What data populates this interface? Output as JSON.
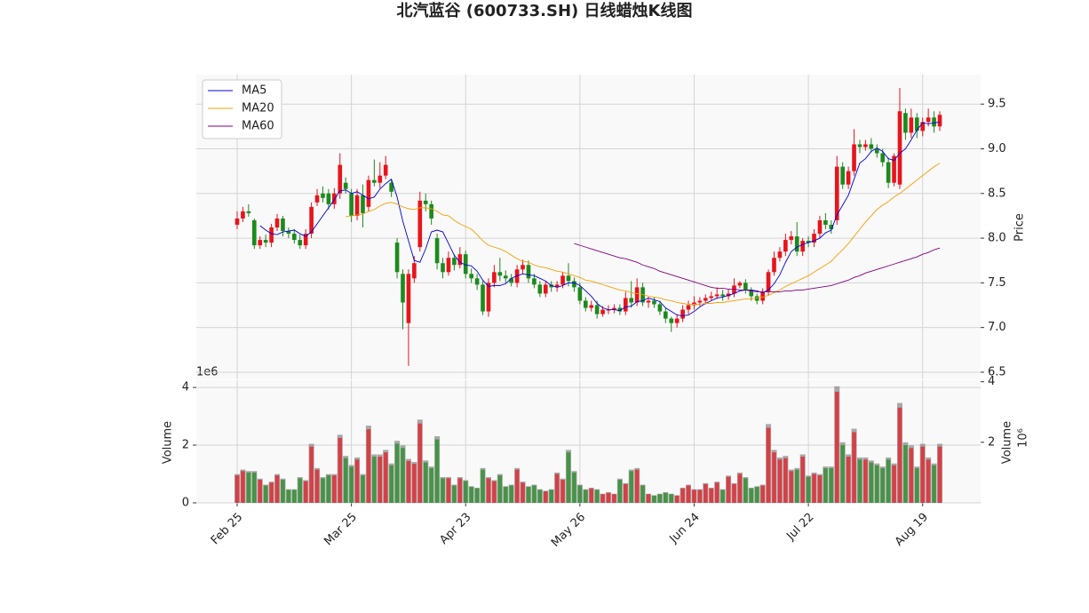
{
  "chart_data": [
    {
      "type": "candlestick",
      "title": "北汽蓝谷 (600733.SH) 日线蜡烛K线图",
      "y_label": "Price",
      "up_color": "#e8141c",
      "down_color": "#1d8a1d",
      "ylim": [
        6.42,
        9.83
      ],
      "yticks": [
        6.5,
        {
          "value": 7,
          "label": "7.0"
        },
        7.5,
        {
          "value": 8,
          "label": "8.0"
        },
        8.5,
        {
          "value": 9,
          "label": "9.0"
        },
        9.5
      ],
      "grid": true,
      "legend": "upper left",
      "open": [
        8.15,
        8.22,
        8.3,
        8.2,
        7.92,
        7.98,
        7.95,
        8.12,
        8.22,
        8.08,
        8.05,
        7.98,
        7.92,
        8.05,
        8.4,
        8.5,
        8.5,
        8.38,
        8.5,
        8.62,
        8.5,
        8.25,
        8.48,
        8.35,
        8.65,
        8.62,
        8.7,
        8.62,
        7.95,
        7.6,
        7.05,
        7.55,
        7.9,
        8.42,
        8.38,
        8.0,
        7.72,
        7.62,
        7.78,
        7.7,
        7.82,
        7.6,
        7.55,
        7.48,
        7.18,
        7.5,
        7.62,
        7.58,
        7.55,
        7.5,
        7.65,
        7.7,
        7.55,
        7.48,
        7.38,
        7.48,
        7.45,
        7.48,
        7.58,
        7.52,
        7.45,
        7.3,
        7.22,
        7.25,
        7.15,
        7.2,
        7.2,
        7.22,
        7.18,
        7.33,
        7.28,
        7.45,
        7.28,
        7.3,
        7.26,
        7.18,
        7.1,
        7.05,
        7.1,
        7.2,
        7.25,
        7.28,
        7.3,
        7.33,
        7.35,
        7.37,
        7.35,
        7.38,
        7.47,
        7.5,
        7.42,
        7.35,
        7.3,
        7.4,
        7.62,
        7.78,
        7.85,
        7.98,
        8.02,
        7.85,
        7.97,
        7.95,
        8.05,
        8.2,
        8.15,
        8.2,
        8.8,
        8.6,
        8.75,
        9.05,
        9.02,
        9.05,
        9.0,
        8.95,
        8.85,
        8.62,
        8.6,
        9.4,
        9.18,
        9.35,
        9.2,
        9.3,
        9.35,
        9.25
      ],
      "high": [
        8.3,
        8.35,
        8.38,
        8.22,
        8.02,
        8.04,
        8.16,
        8.27,
        8.25,
        8.12,
        8.1,
        8.04,
        8.1,
        8.4,
        8.55,
        8.58,
        8.55,
        8.56,
        8.95,
        8.68,
        8.55,
        8.55,
        8.6,
        8.7,
        8.88,
        8.85,
        8.92,
        8.66,
        8.0,
        7.65,
        7.65,
        7.8,
        8.52,
        8.5,
        8.42,
        8.05,
        7.78,
        7.85,
        7.82,
        7.9,
        7.86,
        7.66,
        7.6,
        7.52,
        7.55,
        7.7,
        7.78,
        7.64,
        7.6,
        7.7,
        7.76,
        7.75,
        7.6,
        7.52,
        7.52,
        7.52,
        7.52,
        7.62,
        7.72,
        7.56,
        7.5,
        7.34,
        7.3,
        7.3,
        7.24,
        7.25,
        7.26,
        7.26,
        7.4,
        7.52,
        7.55,
        7.5,
        7.34,
        7.34,
        7.3,
        7.22,
        7.12,
        7.15,
        7.25,
        7.3,
        7.35,
        7.34,
        7.37,
        7.4,
        7.45,
        7.42,
        7.43,
        7.55,
        7.52,
        7.54,
        7.45,
        7.38,
        7.44,
        7.65,
        7.85,
        7.9,
        8.05,
        8.08,
        8.18,
        8.0,
        8.02,
        8.1,
        8.25,
        8.28,
        8.2,
        8.92,
        8.85,
        8.8,
        9.22,
        9.1,
        9.1,
        9.12,
        9.05,
        9.0,
        8.9,
        8.95,
        9.68,
        9.45,
        9.45,
        9.4,
        9.35,
        9.45,
        9.42,
        9.42
      ],
      "low": [
        8.1,
        8.18,
        8.24,
        7.88,
        7.88,
        7.9,
        7.9,
        8.08,
        8.02,
        8.0,
        7.94,
        7.88,
        7.88,
        8.0,
        8.36,
        8.4,
        8.32,
        8.33,
        8.44,
        8.5,
        8.18,
        8.2,
        8.12,
        8.3,
        8.58,
        8.56,
        8.66,
        8.46,
        7.55,
        6.98,
        6.57,
        7.5,
        7.85,
        8.3,
        8.15,
        7.65,
        7.55,
        7.58,
        7.64,
        7.66,
        7.55,
        7.5,
        7.42,
        7.14,
        7.12,
        7.45,
        7.52,
        7.5,
        7.46,
        7.45,
        7.6,
        7.5,
        7.44,
        7.34,
        7.34,
        7.4,
        7.4,
        7.44,
        7.46,
        7.4,
        7.26,
        7.18,
        7.18,
        7.1,
        7.12,
        7.15,
        7.16,
        7.14,
        7.14,
        7.22,
        7.24,
        7.24,
        7.22,
        7.22,
        7.14,
        7.05,
        6.95,
        7.0,
        7.06,
        7.15,
        7.2,
        7.24,
        7.26,
        7.3,
        7.32,
        7.3,
        7.31,
        7.34,
        7.44,
        7.38,
        7.3,
        7.26,
        7.26,
        7.36,
        7.58,
        7.74,
        7.8,
        7.93,
        7.8,
        7.8,
        7.9,
        7.9,
        8.0,
        8.1,
        8.05,
        8.15,
        8.55,
        8.55,
        8.7,
        8.95,
        8.98,
        8.96,
        8.9,
        8.8,
        8.56,
        8.58,
        8.55,
        9.1,
        9.12,
        9.12,
        9.14,
        9.25,
        9.18,
        9.2
      ],
      "close": [
        8.22,
        8.3,
        8.28,
        7.92,
        7.98,
        7.95,
        8.12,
        8.22,
        8.08,
        8.05,
        7.98,
        7.92,
        8.05,
        8.35,
        8.48,
        8.45,
        8.38,
        8.5,
        8.82,
        8.55,
        8.25,
        8.48,
        8.28,
        8.65,
        8.62,
        8.7,
        8.82,
        8.52,
        7.62,
        7.28,
        7.6,
        7.72,
        8.42,
        8.38,
        8.22,
        7.72,
        7.62,
        7.78,
        7.7,
        7.82,
        7.6,
        7.55,
        7.48,
        7.18,
        7.5,
        7.62,
        7.58,
        7.55,
        7.5,
        7.65,
        7.7,
        7.55,
        7.48,
        7.38,
        7.48,
        7.45,
        7.48,
        7.58,
        7.52,
        7.45,
        7.3,
        7.22,
        7.25,
        7.15,
        7.2,
        7.2,
        7.22,
        7.18,
        7.33,
        7.28,
        7.45,
        7.28,
        7.3,
        7.26,
        7.18,
        7.1,
        7.05,
        7.1,
        7.2,
        7.25,
        7.28,
        7.3,
        7.33,
        7.35,
        7.37,
        7.35,
        7.38,
        7.47,
        7.5,
        7.42,
        7.35,
        7.3,
        7.4,
        7.62,
        7.78,
        7.85,
        7.98,
        8.02,
        7.85,
        7.97,
        7.95,
        8.05,
        8.2,
        8.15,
        8.1,
        8.8,
        8.6,
        8.75,
        9.05,
        9.02,
        9.05,
        9.0,
        8.95,
        8.85,
        8.62,
        8.92,
        9.42,
        9.18,
        9.35,
        9.2,
        9.3,
        9.35,
        9.25,
        9.38
      ],
      "series": [
        {
          "name": "MA5",
          "color": "#0000dd",
          "values": [
            null,
            null,
            null,
            null,
            8.14,
            8.09,
            8.05,
            8.04,
            8.07,
            8.08,
            8.09,
            8.05,
            8.02,
            8.07,
            8.16,
            8.25,
            8.34,
            8.43,
            8.53,
            8.54,
            8.5,
            8.52,
            8.48,
            8.44,
            8.46,
            8.55,
            8.61,
            8.66,
            8.46,
            8.19,
            7.97,
            7.75,
            7.73,
            7.88,
            8.07,
            8.09,
            8.07,
            7.94,
            7.81,
            7.73,
            7.7,
            7.69,
            7.63,
            7.53,
            7.46,
            7.47,
            7.47,
            7.49,
            7.55,
            7.58,
            7.6,
            7.59,
            7.58,
            7.55,
            7.52,
            7.47,
            7.45,
            7.47,
            7.5,
            7.5,
            7.47,
            7.41,
            7.35,
            7.27,
            7.22,
            7.2,
            7.2,
            7.19,
            7.23,
            7.24,
            7.29,
            7.3,
            7.33,
            7.31,
            7.29,
            7.22,
            7.18,
            7.14,
            7.13,
            7.14,
            7.18,
            7.23,
            7.27,
            7.3,
            7.33,
            7.34,
            7.36,
            7.38,
            7.41,
            7.42,
            7.42,
            7.41,
            7.39,
            7.42,
            7.49,
            7.59,
            7.73,
            7.85,
            7.9,
            7.93,
            7.95,
            7.97,
            8.0,
            8.06,
            8.09,
            8.26,
            8.37,
            8.48,
            8.66,
            8.84,
            8.89,
            8.97,
            9.01,
            8.97,
            8.89,
            8.87,
            8.95,
            9.0,
            9.1,
            9.21,
            9.29,
            9.28,
            9.29,
            9.3
          ]
        },
        {
          "name": "MA20",
          "color": "#f5a000",
          "values": [
            null,
            null,
            null,
            null,
            null,
            null,
            null,
            null,
            null,
            null,
            null,
            null,
            null,
            null,
            null,
            null,
            null,
            null,
            null,
            8.24,
            8.25,
            8.26,
            8.27,
            8.3,
            8.32,
            8.36,
            8.39,
            8.4,
            8.38,
            8.35,
            8.33,
            8.32,
            8.34,
            8.34,
            8.33,
            8.3,
            8.26,
            8.25,
            8.2,
            8.16,
            8.13,
            8.1,
            8.04,
            7.97,
            7.92,
            7.9,
            7.88,
            7.85,
            7.81,
            7.77,
            7.74,
            7.73,
            7.7,
            7.68,
            7.67,
            7.65,
            7.63,
            7.62,
            7.6,
            7.58,
            7.56,
            7.53,
            7.52,
            7.5,
            7.48,
            7.46,
            7.44,
            7.42,
            7.41,
            7.39,
            7.38,
            7.37,
            7.35,
            7.34,
            7.33,
            7.31,
            7.3,
            7.28,
            7.27,
            7.26,
            7.26,
            7.26,
            7.27,
            7.27,
            7.28,
            7.28,
            7.29,
            7.3,
            7.31,
            7.32,
            7.32,
            7.33,
            7.34,
            7.36,
            7.39,
            7.42,
            7.46,
            7.49,
            7.52,
            7.55,
            7.58,
            7.62,
            7.66,
            7.7,
            7.74,
            7.81,
            7.87,
            7.94,
            8.02,
            8.1,
            8.18,
            8.25,
            8.32,
            8.37,
            8.41,
            8.46,
            8.5,
            8.55,
            8.6,
            8.65,
            8.7,
            8.75,
            8.8,
            8.84
          ]
        },
        {
          "name": "MA60",
          "color": "#800080",
          "values": [
            null,
            null,
            null,
            null,
            null,
            null,
            null,
            null,
            null,
            null,
            null,
            null,
            null,
            null,
            null,
            null,
            null,
            null,
            null,
            null,
            null,
            null,
            null,
            null,
            null,
            null,
            null,
            null,
            null,
            null,
            null,
            null,
            null,
            null,
            null,
            null,
            null,
            null,
            null,
            null,
            null,
            null,
            null,
            null,
            null,
            null,
            null,
            null,
            null,
            null,
            null,
            null,
            null,
            null,
            null,
            null,
            null,
            null,
            null,
            7.94,
            7.92,
            7.9,
            7.88,
            7.86,
            7.84,
            7.82,
            7.8,
            7.78,
            7.77,
            7.75,
            7.73,
            7.7,
            7.68,
            7.66,
            7.63,
            7.61,
            7.59,
            7.57,
            7.55,
            7.53,
            7.51,
            7.49,
            7.47,
            7.45,
            7.44,
            7.44,
            7.43,
            7.43,
            7.42,
            7.42,
            7.41,
            7.4,
            7.4,
            7.4,
            7.4,
            7.4,
            7.41,
            7.41,
            7.42,
            7.42,
            7.43,
            7.44,
            7.45,
            7.46,
            7.47,
            7.49,
            7.51,
            7.53,
            7.56,
            7.58,
            7.61,
            7.63,
            7.65,
            7.67,
            7.69,
            7.71,
            7.73,
            7.75,
            7.77,
            7.79,
            7.82,
            7.84,
            7.87,
            7.89
          ]
        }
      ]
    },
    {
      "type": "bar",
      "y_label": "Volume",
      "y_offset_label": "1e6",
      "y2_label": "Volume",
      "y2_offset_label": "10⁶",
      "categories": [
        "Feb 25",
        null,
        null,
        null,
        null,
        null,
        null,
        null,
        null,
        null,
        null,
        null,
        null,
        null,
        null,
        null,
        null,
        null,
        null,
        null,
        "Mar 25",
        null,
        null,
        null,
        null,
        null,
        null,
        null,
        null,
        null,
        null,
        null,
        null,
        null,
        null,
        null,
        null,
        null,
        null,
        null,
        "Apr 23",
        null,
        null,
        null,
        null,
        null,
        null,
        null,
        null,
        null,
        null,
        null,
        null,
        null,
        null,
        null,
        null,
        null,
        null,
        null,
        "May 26",
        null,
        null,
        null,
        null,
        null,
        null,
        null,
        null,
        null,
        null,
        null,
        null,
        null,
        null,
        null,
        null,
        null,
        null,
        null,
        "Jun 24",
        null,
        null,
        null,
        null,
        null,
        null,
        null,
        null,
        null,
        null,
        null,
        null,
        null,
        null,
        null,
        null,
        null,
        null,
        null,
        "Jul 22",
        null,
        null,
        null,
        null,
        null,
        null,
        null,
        null,
        null,
        null,
        null,
        null,
        null,
        null,
        null,
        null,
        null,
        null,
        null,
        "Aug 19",
        null,
        null,
        null
      ],
      "values": [
        0.95,
        1.1,
        1.05,
        1.05,
        0.8,
        0.6,
        0.7,
        0.95,
        0.8,
        0.45,
        0.45,
        0.85,
        0.75,
        1.95,
        1.15,
        0.85,
        0.95,
        0.95,
        2.25,
        1.55,
        1.25,
        1.5,
        0.95,
        2.55,
        1.6,
        1.6,
        1.75,
        1.3,
        2.05,
        1.9,
        1.45,
        1.35,
        2.75,
        1.4,
        1.2,
        2.2,
        0.85,
        0.85,
        0.6,
        0.85,
        0.75,
        0.55,
        0.5,
        1.15,
        0.85,
        0.75,
        0.95,
        0.55,
        0.6,
        1.15,
        0.7,
        0.55,
        0.6,
        0.45,
        0.4,
        0.45,
        1.0,
        0.8,
        1.75,
        1.05,
        0.6,
        0.45,
        0.5,
        0.45,
        0.3,
        0.35,
        0.3,
        0.8,
        0.65,
        1.1,
        1.15,
        0.6,
        0.3,
        0.25,
        0.3,
        0.35,
        0.3,
        0.25,
        0.5,
        0.6,
        0.45,
        0.45,
        0.65,
        0.5,
        0.7,
        0.45,
        0.9,
        0.65,
        1.0,
        0.85,
        0.5,
        0.55,
        0.6,
        2.6,
        1.75,
        1.5,
        1.55,
        1.1,
        1.15,
        1.6,
        0.9,
        1.0,
        0.95,
        1.2,
        1.2,
        3.85,
        2.0,
        1.6,
        2.45,
        1.5,
        1.5,
        1.4,
        1.3,
        1.2,
        1.5,
        1.3,
        3.3,
        2.0,
        1.9,
        1.2,
        1.95,
        1.5,
        1.3,
        1.95
      ],
      "ylim": [
        0,
        4.25
      ],
      "yticks": [
        0,
        2,
        4
      ],
      "y2lim": [
        0,
        4.05
      ],
      "y2ticks": [
        2,
        4
      ],
      "y2_color": "#8c8c8c",
      "grid": true
    }
  ]
}
